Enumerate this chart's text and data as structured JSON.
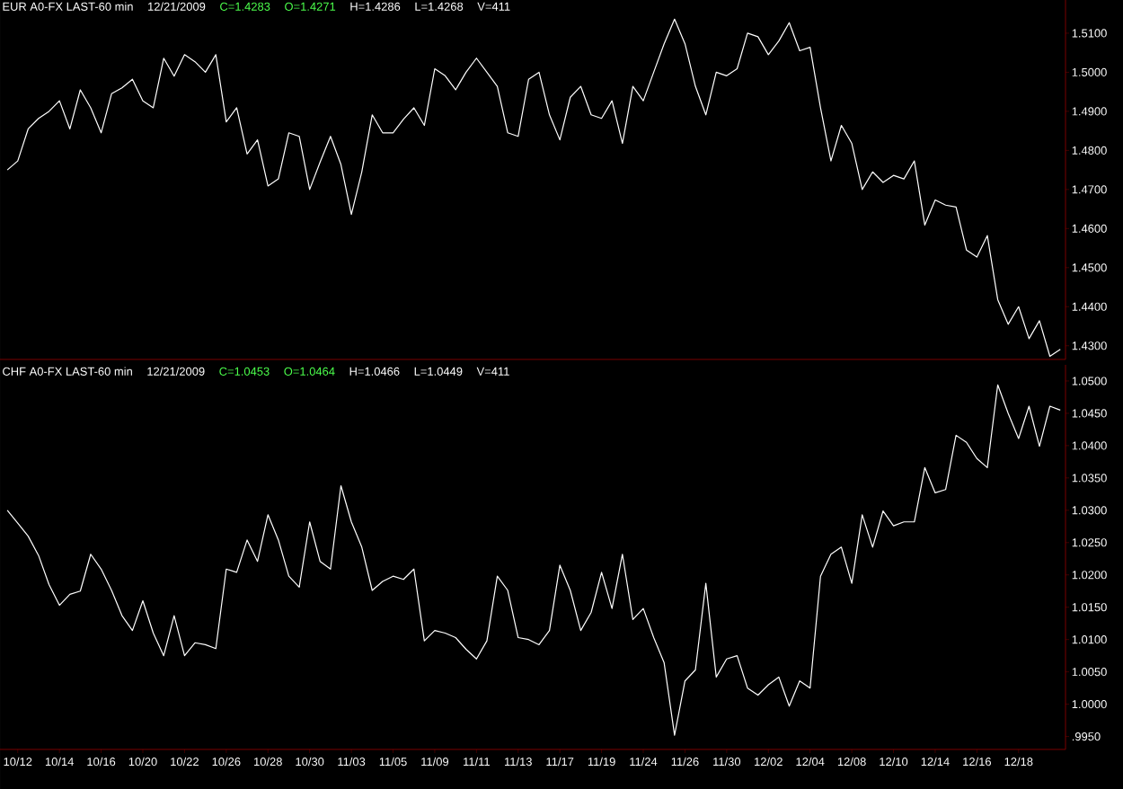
{
  "chart_data": [
    {
      "type": "line",
      "title": "EUR A0-FX LAST-60 min",
      "annotations": [
        "12/21/2009",
        "C=1.4283",
        "O=1.4271",
        "H=1.4286",
        "L=1.4268",
        "V=411"
      ],
      "marker": "none",
      "line_style": "solid",
      "grid": false,
      "categories": [
        null,
        null,
        null,
        null,
        null,
        null,
        null,
        null,
        null,
        null,
        null,
        null,
        null,
        null,
        null,
        null,
        null,
        null,
        null,
        null,
        null,
        null,
        null,
        null,
        null,
        null,
        null,
        null,
        null,
        null,
        null,
        null,
        null,
        null,
        null,
        null,
        null,
        null,
        null,
        null,
        null,
        null,
        null,
        null,
        null,
        null,
        null,
        null,
        null,
        null,
        null,
        null,
        null,
        null,
        null,
        null,
        null,
        null,
        null,
        null,
        null,
        null,
        null,
        null,
        null,
        null,
        null,
        null,
        null,
        null,
        null,
        null,
        null,
        null,
        null,
        null,
        null,
        null,
        null,
        null,
        null,
        null,
        null,
        null,
        null,
        null,
        null,
        null,
        null,
        null,
        null,
        null,
        null,
        null,
        null,
        null,
        null,
        null,
        null,
        null,
        null,
        null
      ],
      "ylim": [
        1.4265,
        1.5185
      ],
      "yticks": [
        {
          "value": 1.43,
          "label": "1.4300"
        },
        {
          "value": 1.44,
          "label": "1.4400"
        },
        {
          "value": 1.45,
          "label": "1.4500"
        },
        {
          "value": 1.46,
          "label": "1.4600"
        },
        {
          "value": 1.47,
          "label": "1.4700"
        },
        {
          "value": 1.48,
          "label": "1.4800"
        },
        {
          "value": 1.49,
          "label": "1.4900"
        },
        {
          "value": 1.5,
          "label": "1.5000"
        },
        {
          "value": 1.51,
          "label": "1.5100"
        }
      ],
      "series": [
        {
          "color": "#ffffff",
          "values": [
            1.475,
            1.4773,
            1.4855,
            1.4882,
            1.49,
            1.4927,
            1.4855,
            1.4955,
            1.4909,
            1.4845,
            1.4945,
            1.496,
            1.4982,
            1.4927,
            1.4909,
            1.5036,
            1.499,
            1.5045,
            1.5027,
            1.5,
            1.5045,
            1.4873,
            1.4909,
            1.4791,
            1.4827,
            1.4709,
            1.4727,
            1.4845,
            1.4836,
            1.47,
            1.477,
            1.4836,
            1.4764,
            1.4636,
            1.4745,
            1.4891,
            1.4845,
            1.4845,
            1.488,
            1.4909,
            1.4864,
            1.5009,
            1.4991,
            1.4955,
            1.5,
            1.5036,
            1.5,
            1.4964,
            1.4845,
            1.4836,
            1.4982,
            1.5,
            1.4891,
            1.4827,
            1.4936,
            1.4964,
            1.4891,
            1.4882,
            1.4927,
            1.4818,
            1.4964,
            1.4927,
            1.5,
            1.5073,
            1.5136,
            1.5073,
            1.4964,
            1.4891,
            1.5,
            1.4991,
            1.5009,
            1.51,
            1.5091,
            1.5045,
            1.508,
            1.5127,
            1.5055,
            1.5064,
            1.4909,
            1.4773,
            1.4864,
            1.4818,
            1.47,
            1.4745,
            1.4718,
            1.4736,
            1.4727,
            1.4773,
            1.4609,
            1.4673,
            1.466,
            1.4655,
            1.4545,
            1.4527,
            1.4582,
            1.4418,
            1.4355,
            1.44,
            1.4318,
            1.4364,
            1.4273,
            1.4291
          ]
        }
      ]
    },
    {
      "type": "line",
      "title": "CHF A0-FX LAST-60 min",
      "annotations": [
        "12/21/2009",
        "C=1.0453",
        "O=1.0464",
        "H=1.0466",
        "L=1.0449",
        "V=411"
      ],
      "marker": "none",
      "line_style": "solid",
      "grid": false,
      "categories": [
        null,
        "10/12",
        null,
        null,
        null,
        "10/14",
        null,
        null,
        null,
        "10/16",
        null,
        null,
        null,
        "10/20",
        null,
        null,
        null,
        "10/22",
        null,
        null,
        null,
        "10/26",
        null,
        null,
        null,
        "10/28",
        null,
        null,
        null,
        "10/30",
        null,
        null,
        null,
        "11/03",
        null,
        null,
        null,
        "11/05",
        null,
        null,
        null,
        "11/09",
        null,
        null,
        null,
        "11/11",
        null,
        null,
        null,
        "11/13",
        null,
        null,
        null,
        "11/17",
        null,
        null,
        null,
        "11/19",
        null,
        null,
        null,
        "11/24",
        null,
        null,
        null,
        "11/26",
        null,
        null,
        null,
        "11/30",
        null,
        null,
        null,
        "12/02",
        null,
        null,
        null,
        "12/04",
        null,
        null,
        null,
        "12/08",
        null,
        null,
        null,
        "12/10",
        null,
        null,
        null,
        "12/14",
        null,
        null,
        null,
        "12/16",
        null,
        null,
        null,
        "12/18",
        null,
        null,
        null,
        null
      ],
      "ylim": [
        0.993,
        1.0525
      ],
      "yticks": [
        {
          "value": 0.995,
          "label": ".9950"
        },
        {
          "value": 1.0,
          "label": "1.0000"
        },
        {
          "value": 1.005,
          "label": "1.0050"
        },
        {
          "value": 1.01,
          "label": "1.0100"
        },
        {
          "value": 1.015,
          "label": "1.0150"
        },
        {
          "value": 1.02,
          "label": "1.0200"
        },
        {
          "value": 1.025,
          "label": "1.0250"
        },
        {
          "value": 1.03,
          "label": "1.0300"
        },
        {
          "value": 1.035,
          "label": "1.0350"
        },
        {
          "value": 1.04,
          "label": "1.0400"
        },
        {
          "value": 1.045,
          "label": "1.0450"
        },
        {
          "value": 1.05,
          "label": "1.0500"
        }
      ],
      "series": [
        {
          "color": "#ffffff",
          "values": [
            1.03,
            1.028,
            1.026,
            1.023,
            1.0185,
            1.0153,
            1.017,
            1.0175,
            1.0232,
            1.0209,
            1.0176,
            1.0137,
            1.0114,
            1.016,
            1.011,
            1.0075,
            1.0137,
            1.0075,
            1.0095,
            1.0092,
            1.0086,
            1.0209,
            1.0204,
            1.0254,
            1.0221,
            1.0293,
            1.0254,
            1.0198,
            1.0181,
            1.0282,
            1.0221,
            1.0209,
            1.0338,
            1.0282,
            1.0243,
            1.0176,
            1.019,
            1.0198,
            1.0193,
            1.0209,
            1.0098,
            1.0114,
            1.011,
            1.0103,
            1.0085,
            1.007,
            1.0098,
            1.0198,
            1.0176,
            1.0103,
            1.01,
            1.0092,
            1.0114,
            1.0215,
            1.0176,
            1.0114,
            1.0142,
            1.0204,
            1.0148,
            1.0232,
            1.0131,
            1.0148,
            1.0103,
            1.0064,
            0.9952,
            1.0036,
            1.0053,
            1.0187,
            1.0042,
            1.007,
            1.0075,
            1.0025,
            1.0014,
            1.003,
            1.0042,
            0.9997,
            1.0036,
            1.0025,
            1.0198,
            1.0232,
            1.0243,
            1.0187,
            1.0293,
            1.0243,
            1.0299,
            1.0276,
            1.0282,
            1.0282,
            1.0366,
            1.0327,
            1.0332,
            1.0416,
            1.0405,
            1.038,
            1.0366,
            1.0494,
            1.045,
            1.0411,
            1.0461,
            1.0399,
            1.0461,
            1.0455
          ]
        }
      ]
    }
  ]
}
